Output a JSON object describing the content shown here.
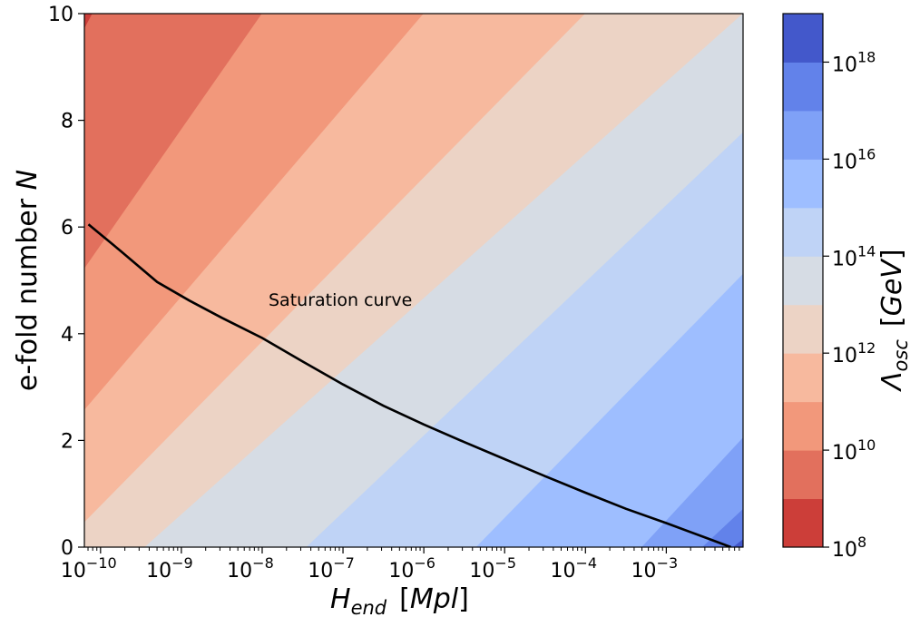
{
  "chart_data": {
    "type": "contour",
    "xlabel": {
      "main": "H",
      "sub": "end",
      "unit": "[Mpl]"
    },
    "ylabel": {
      "main": "e-fold number ",
      "italic": "N"
    },
    "colorbar_label": {
      "main": "Λ",
      "sub": "osc",
      "unit": "[GeV]"
    },
    "annotation": "Saturation curve",
    "x_scale": "log",
    "x_log10_range": [
      -10.2,
      -2.05
    ],
    "y_range": [
      0,
      10
    ],
    "y_ticks": [
      {
        "value": 0,
        "label": "0"
      },
      {
        "value": 2,
        "label": "2"
      },
      {
        "value": 4,
        "label": "4"
      },
      {
        "value": 6,
        "label": "6"
      },
      {
        "value": 8,
        "label": "8"
      },
      {
        "value": 10,
        "label": "10"
      }
    ],
    "x_ticks": [
      {
        "log": -10,
        "base": "10",
        "exp": "−10"
      },
      {
        "log": -9,
        "base": "10",
        "exp": "−9"
      },
      {
        "log": -8,
        "base": "10",
        "exp": "−8"
      },
      {
        "log": -7,
        "base": "10",
        "exp": "−7"
      },
      {
        "log": -6,
        "base": "10",
        "exp": "−6"
      },
      {
        "log": -5,
        "base": "10",
        "exp": "−5"
      },
      {
        "log": -4,
        "base": "10",
        "exp": "−4"
      },
      {
        "log": -3,
        "base": "10",
        "exp": "−3"
      }
    ],
    "colorbar_ticks": [
      {
        "log": 8,
        "base": "10",
        "exp": "8"
      },
      {
        "log": 10,
        "base": "10",
        "exp": "10"
      },
      {
        "log": 12,
        "base": "10",
        "exp": "12"
      },
      {
        "log": 14,
        "base": "10",
        "exp": "14"
      },
      {
        "log": 16,
        "base": "10",
        "exp": "16"
      },
      {
        "log": 18,
        "base": "10",
        "exp": "18"
      }
    ],
    "levels_log10": [
      8,
      9,
      10,
      11,
      12,
      13,
      14,
      15,
      16,
      17,
      18,
      19
    ],
    "level_colors": [
      "#cc3e39",
      "#e2705d",
      "#f2987b",
      "#f7b99e",
      "#ecd3c5",
      "#d6dce4",
      "#bfd3f6",
      "#9ebeff",
      "#7fa1f7",
      "#6282ea",
      "#4358cb"
    ],
    "contour_model": {
      "description": "Contour boundaries in (log10 H, N) space; value rises with H and falls with N",
      "boundaries": [
        {
          "level": 9,
          "x_at_N0": -13.55,
          "x_at_N10": -10.1
        },
        {
          "level": 10,
          "x_at_N0": -12.6,
          "x_at_N10": -8.0
        },
        {
          "level": 11,
          "x_at_N0": -11.65,
          "x_at_N10": -6.0
        },
        {
          "level": 12,
          "x_at_N0": -10.5,
          "x_at_N10": -4.0
        },
        {
          "level": 13,
          "x_at_N0": -9.45,
          "x_at_N10": -2.05
        },
        {
          "level": 14,
          "x_at_N0": -7.45,
          "x_at_N10": -0.5
        },
        {
          "level": 15,
          "x_at_N0": -5.35,
          "x_at_N10": 1.1
        },
        {
          "level": 16,
          "x_at_N0": -3.3,
          "x_at_N10": 2.8
        },
        {
          "level": 17,
          "x_at_N0": -2.55,
          "x_at_N10": 4.5
        },
        {
          "level": 18,
          "x_at_N0": -2.17,
          "x_at_N10": 6.2
        }
      ]
    },
    "saturation_curve": {
      "x_log10": [
        -10.15,
        -9.75,
        -9.3,
        -8.9,
        -8.5,
        -8.0,
        -7.5,
        -7.0,
        -6.5,
        -6.0,
        -5.5,
        -5.0,
        -4.5,
        -4.0,
        -3.5,
        -3.0,
        -2.5,
        -2.2
      ],
      "y": [
        6.05,
        5.55,
        4.97,
        4.62,
        4.3,
        3.92,
        3.48,
        3.05,
        2.65,
        2.3,
        1.97,
        1.65,
        1.33,
        1.02,
        0.72,
        0.45,
        0.17,
        0.0
      ]
    }
  }
}
